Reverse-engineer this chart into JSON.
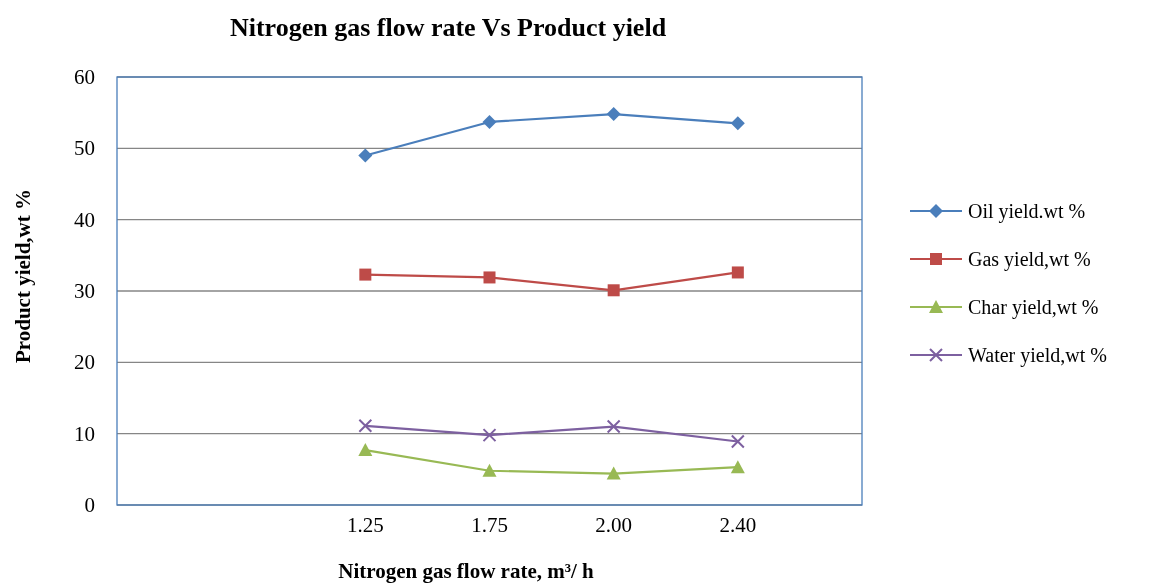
{
  "chart_data": {
    "type": "line",
    "title": "Nitrogen gas flow rate Vs Product yield",
    "xlabel": "Nitrogen gas flow rate,  m³/ h",
    "ylabel": "Product yield,wt %",
    "categories": [
      null,
      null,
      "1.25",
      "1.75",
      "2.00",
      "2.40",
      null
    ],
    "series": [
      {
        "name": "Oil yield.wt %",
        "color": "#4a7ebb",
        "marker": "diamond",
        "values": [
          null,
          null,
          49,
          53.7,
          54.8,
          53.5,
          null
        ]
      },
      {
        "name": "Gas yield,wt %",
        "color": "#be4b48",
        "marker": "square",
        "values": [
          null,
          null,
          32.3,
          31.9,
          30.1,
          32.6,
          null
        ]
      },
      {
        "name": "Char yield,wt %",
        "color": "#98b954",
        "marker": "triangle",
        "values": [
          null,
          null,
          7.7,
          4.8,
          4.4,
          5.3,
          null
        ]
      },
      {
        "name": "Water yield,wt %",
        "color": "#7d60a0",
        "marker": "cross",
        "values": [
          null,
          null,
          11.1,
          9.8,
          11.0,
          8.9,
          null
        ]
      }
    ],
    "ylim": [
      0,
      60
    ],
    "yticks": [
      0,
      10,
      20,
      30,
      40,
      50,
      60
    ],
    "grid": "y",
    "legend": "right",
    "line_style": "solid"
  }
}
